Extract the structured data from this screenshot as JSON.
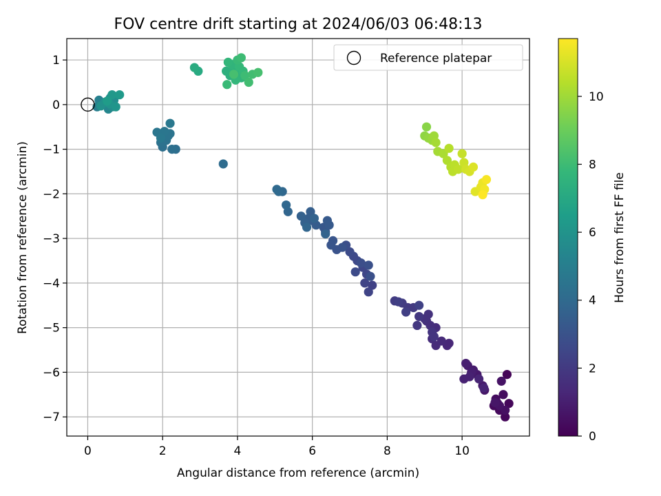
{
  "chart_data": {
    "type": "scatter",
    "title": "FOV centre drift starting at 2024/06/03 06:48:13",
    "xlabel": "Angular distance from reference (arcmin)",
    "ylabel": "Rotation from reference (arcmin)",
    "xlim": [
      -0.56,
      11.8
    ],
    "ylim": [
      -7.43,
      1.48
    ],
    "xticks": [
      0,
      2,
      4,
      6,
      8,
      10
    ],
    "yticks": [
      1,
      0,
      -1,
      -2,
      -3,
      -4,
      -5,
      -6,
      -7
    ],
    "grid": true,
    "legend": {
      "placement": "top-right",
      "entries": [
        "Reference platepar"
      ]
    },
    "reference_point": {
      "x": 0,
      "y": 0,
      "label": "Reference platepar"
    },
    "colorbar": {
      "label": "Hours from first FF file",
      "range": [
        0,
        11.7
      ],
      "ticks": [
        0,
        2,
        4,
        6,
        8,
        10
      ],
      "colormap": "viridis"
    },
    "colormap_stops": [
      "#440154",
      "#482878",
      "#3e4989",
      "#31688e",
      "#26828e",
      "#1f9e89",
      "#35b779",
      "#6ece58",
      "#b5de2b",
      "#fde725"
    ],
    "point_color_axis": "hours",
    "points": [
      {
        "x": 11.2,
        "y": -6.05,
        "h": 0.1
      },
      {
        "x": 11.25,
        "y": -6.7,
        "h": 0.2
      },
      {
        "x": 11.15,
        "y": -7.0,
        "h": 0.2
      },
      {
        "x": 11.0,
        "y": -6.85,
        "h": 0.3
      },
      {
        "x": 10.85,
        "y": -6.75,
        "h": 0.3
      },
      {
        "x": 10.9,
        "y": -6.6,
        "h": 0.4
      },
      {
        "x": 11.1,
        "y": -6.5,
        "h": 0.4
      },
      {
        "x": 11.15,
        "y": -6.85,
        "h": 0.5
      },
      {
        "x": 10.95,
        "y": -6.7,
        "h": 0.5
      },
      {
        "x": 11.05,
        "y": -6.2,
        "h": 0.6
      },
      {
        "x": 11.0,
        "y": -6.75,
        "h": 0.6
      },
      {
        "x": 10.88,
        "y": -6.68,
        "h": 0.7
      },
      {
        "x": 10.6,
        "y": -6.4,
        "h": 0.7
      },
      {
        "x": 10.55,
        "y": -6.3,
        "h": 0.8
      },
      {
        "x": 10.4,
        "y": -6.05,
        "h": 0.8
      },
      {
        "x": 10.3,
        "y": -5.95,
        "h": 0.9
      },
      {
        "x": 10.15,
        "y": -5.85,
        "h": 0.9
      },
      {
        "x": 10.1,
        "y": -5.8,
        "h": 1.0
      },
      {
        "x": 10.25,
        "y": -6.0,
        "h": 1.0
      },
      {
        "x": 10.05,
        "y": -6.15,
        "h": 1.1
      },
      {
        "x": 10.2,
        "y": -6.1,
        "h": 1.1
      },
      {
        "x": 10.45,
        "y": -6.15,
        "h": 1.2
      },
      {
        "x": 10.58,
        "y": -6.35,
        "h": 1.2
      },
      {
        "x": 9.65,
        "y": -5.35,
        "h": 1.3
      },
      {
        "x": 9.6,
        "y": -5.4,
        "h": 1.3
      },
      {
        "x": 9.45,
        "y": -5.3,
        "h": 1.4
      },
      {
        "x": 9.3,
        "y": -5.4,
        "h": 1.4
      },
      {
        "x": 9.2,
        "y": -5.25,
        "h": 1.5
      },
      {
        "x": 9.3,
        "y": -5.0,
        "h": 1.5
      },
      {
        "x": 9.15,
        "y": -4.95,
        "h": 1.6
      },
      {
        "x": 9.05,
        "y": -4.85,
        "h": 1.6
      },
      {
        "x": 9.1,
        "y": -4.7,
        "h": 1.7
      },
      {
        "x": 9.0,
        "y": -4.8,
        "h": 1.7
      },
      {
        "x": 9.2,
        "y": -5.1,
        "h": 1.8
      },
      {
        "x": 9.25,
        "y": -5.2,
        "h": 1.8
      },
      {
        "x": 8.85,
        "y": -4.75,
        "h": 1.9
      },
      {
        "x": 8.8,
        "y": -4.95,
        "h": 1.9
      },
      {
        "x": 8.7,
        "y": -4.55,
        "h": 2.0
      },
      {
        "x": 8.55,
        "y": -4.55,
        "h": 2.0
      },
      {
        "x": 8.4,
        "y": -4.45,
        "h": 2.1
      },
      {
        "x": 8.2,
        "y": -4.4,
        "h": 2.1
      },
      {
        "x": 8.3,
        "y": -4.42,
        "h": 2.2
      },
      {
        "x": 8.5,
        "y": -4.65,
        "h": 2.2
      },
      {
        "x": 8.85,
        "y": -4.5,
        "h": 2.3
      },
      {
        "x": 7.6,
        "y": -4.05,
        "h": 2.3
      },
      {
        "x": 7.5,
        "y": -4.2,
        "h": 2.4
      },
      {
        "x": 7.4,
        "y": -4.0,
        "h": 2.4
      },
      {
        "x": 7.45,
        "y": -3.8,
        "h": 2.5
      },
      {
        "x": 7.35,
        "y": -3.65,
        "h": 2.5
      },
      {
        "x": 7.2,
        "y": -3.5,
        "h": 2.6
      },
      {
        "x": 7.1,
        "y": -3.4,
        "h": 2.6
      },
      {
        "x": 7.15,
        "y": -3.75,
        "h": 2.7
      },
      {
        "x": 7.0,
        "y": -3.3,
        "h": 2.7
      },
      {
        "x": 6.9,
        "y": -3.15,
        "h": 2.8
      },
      {
        "x": 7.3,
        "y": -3.55,
        "h": 2.8
      },
      {
        "x": 7.5,
        "y": -3.6,
        "h": 2.9
      },
      {
        "x": 7.55,
        "y": -3.85,
        "h": 2.9
      },
      {
        "x": 6.8,
        "y": -3.2,
        "h": 3.0
      },
      {
        "x": 6.65,
        "y": -3.25,
        "h": 3.0
      },
      {
        "x": 6.55,
        "y": -3.05,
        "h": 3.1
      },
      {
        "x": 6.5,
        "y": -3.15,
        "h": 3.1
      },
      {
        "x": 6.35,
        "y": -2.85,
        "h": 3.2
      },
      {
        "x": 6.3,
        "y": -2.75,
        "h": 3.2
      },
      {
        "x": 6.45,
        "y": -2.7,
        "h": 3.3
      },
      {
        "x": 6.4,
        "y": -2.6,
        "h": 3.3
      },
      {
        "x": 6.1,
        "y": -2.7,
        "h": 3.4
      },
      {
        "x": 6.0,
        "y": -2.6,
        "h": 3.4
      },
      {
        "x": 5.9,
        "y": -2.55,
        "h": 3.5
      },
      {
        "x": 5.95,
        "y": -2.4,
        "h": 3.5
      },
      {
        "x": 5.8,
        "y": -2.65,
        "h": 3.6
      },
      {
        "x": 5.7,
        "y": -2.5,
        "h": 3.6
      },
      {
        "x": 6.05,
        "y": -2.55,
        "h": 3.7
      },
      {
        "x": 6.35,
        "y": -2.9,
        "h": 3.7
      },
      {
        "x": 5.85,
        "y": -2.75,
        "h": 3.8
      },
      {
        "x": 5.35,
        "y": -2.4,
        "h": 3.8
      },
      {
        "x": 5.3,
        "y": -2.25,
        "h": 3.9
      },
      {
        "x": 5.2,
        "y": -1.95,
        "h": 3.9
      },
      {
        "x": 5.1,
        "y": -1.95,
        "h": 4.0
      },
      {
        "x": 5.05,
        "y": -1.9,
        "h": 4.0
      },
      {
        "x": 3.62,
        "y": -1.33,
        "h": 4.1
      },
      {
        "x": 2.35,
        "y": -1.0,
        "h": 4.2
      },
      {
        "x": 2.25,
        "y": -1.0,
        "h": 4.3
      },
      {
        "x": 2.0,
        "y": -0.95,
        "h": 4.3
      },
      {
        "x": 2.1,
        "y": -0.8,
        "h": 4.4
      },
      {
        "x": 1.95,
        "y": -0.85,
        "h": 4.4
      },
      {
        "x": 2.2,
        "y": -0.65,
        "h": 4.5
      },
      {
        "x": 2.15,
        "y": -0.7,
        "h": 4.5
      },
      {
        "x": 2.05,
        "y": -0.6,
        "h": 4.6
      },
      {
        "x": 1.85,
        "y": -0.62,
        "h": 4.6
      },
      {
        "x": 2.2,
        "y": -0.42,
        "h": 4.7
      },
      {
        "x": 1.95,
        "y": -0.75,
        "h": 4.7
      },
      {
        "x": 0.25,
        "y": -0.05,
        "h": 5.0
      },
      {
        "x": 0.3,
        "y": 0.1,
        "h": 5.1
      },
      {
        "x": 0.4,
        "y": 0.0,
        "h": 5.2
      },
      {
        "x": 0.5,
        "y": 0.05,
        "h": 5.3
      },
      {
        "x": 0.55,
        "y": -0.1,
        "h": 5.4
      },
      {
        "x": 0.6,
        "y": 0.15,
        "h": 5.5
      },
      {
        "x": 0.65,
        "y": -0.05,
        "h": 5.6
      },
      {
        "x": 0.7,
        "y": 0.1,
        "h": 5.7
      },
      {
        "x": 0.45,
        "y": 0.05,
        "h": 5.8
      },
      {
        "x": 0.35,
        "y": -0.03,
        "h": 5.9
      },
      {
        "x": 0.58,
        "y": 0.02,
        "h": 6.0
      },
      {
        "x": 0.75,
        "y": -0.05,
        "h": 6.1
      },
      {
        "x": 0.65,
        "y": 0.22,
        "h": 6.2
      },
      {
        "x": 0.85,
        "y": 0.22,
        "h": 6.3
      },
      {
        "x": 0.52,
        "y": 0.08,
        "h": 6.4
      },
      {
        "x": 2.95,
        "y": 0.75,
        "h": 7.1
      },
      {
        "x": 2.85,
        "y": 0.83,
        "h": 7.2
      },
      {
        "x": 3.7,
        "y": 0.75,
        "h": 7.4
      },
      {
        "x": 3.8,
        "y": 0.65,
        "h": 7.4
      },
      {
        "x": 3.9,
        "y": 0.8,
        "h": 7.5
      },
      {
        "x": 4.0,
        "y": 0.7,
        "h": 7.5
      },
      {
        "x": 4.1,
        "y": 0.6,
        "h": 7.6
      },
      {
        "x": 3.85,
        "y": 0.9,
        "h": 7.6
      },
      {
        "x": 3.75,
        "y": 0.95,
        "h": 7.7
      },
      {
        "x": 3.95,
        "y": 0.55,
        "h": 7.7
      },
      {
        "x": 4.05,
        "y": 0.85,
        "h": 7.8
      },
      {
        "x": 4.15,
        "y": 0.75,
        "h": 7.8
      },
      {
        "x": 3.72,
        "y": 0.45,
        "h": 7.9
      },
      {
        "x": 4.0,
        "y": 1.0,
        "h": 7.9
      },
      {
        "x": 4.1,
        "y": 1.05,
        "h": 8.0
      },
      {
        "x": 4.2,
        "y": 0.65,
        "h": 8.0
      },
      {
        "x": 4.3,
        "y": 0.5,
        "h": 8.1
      },
      {
        "x": 4.4,
        "y": 0.68,
        "h": 8.1
      },
      {
        "x": 4.55,
        "y": 0.72,
        "h": 8.2
      },
      {
        "x": 3.9,
        "y": 0.68,
        "h": 8.2
      },
      {
        "x": 9.05,
        "y": -0.5,
        "h": 9.6
      },
      {
        "x": 9.0,
        "y": -0.7,
        "h": 9.7
      },
      {
        "x": 9.1,
        "y": -0.75,
        "h": 9.8
      },
      {
        "x": 9.2,
        "y": -0.8,
        "h": 9.9
      },
      {
        "x": 9.25,
        "y": -0.7,
        "h": 10.0
      },
      {
        "x": 9.3,
        "y": -0.85,
        "h": 10.1
      },
      {
        "x": 9.35,
        "y": -1.05,
        "h": 10.1
      },
      {
        "x": 9.5,
        "y": -1.1,
        "h": 10.2
      },
      {
        "x": 9.6,
        "y": -1.25,
        "h": 10.3
      },
      {
        "x": 9.7,
        "y": -1.4,
        "h": 10.4
      },
      {
        "x": 9.65,
        "y": -0.98,
        "h": 10.4
      },
      {
        "x": 9.8,
        "y": -1.35,
        "h": 10.5
      },
      {
        "x": 9.75,
        "y": -1.5,
        "h": 10.5
      },
      {
        "x": 9.9,
        "y": -1.45,
        "h": 10.6
      },
      {
        "x": 10.0,
        "y": -1.1,
        "h": 10.7
      },
      {
        "x": 10.05,
        "y": -1.3,
        "h": 10.8
      },
      {
        "x": 10.1,
        "y": -1.45,
        "h": 10.9
      },
      {
        "x": 10.2,
        "y": -1.5,
        "h": 11.0
      },
      {
        "x": 10.3,
        "y": -1.4,
        "h": 11.1
      },
      {
        "x": 10.35,
        "y": -1.95,
        "h": 11.2
      },
      {
        "x": 10.5,
        "y": -1.85,
        "h": 11.3
      },
      {
        "x": 10.55,
        "y": -1.75,
        "h": 11.4
      },
      {
        "x": 10.6,
        "y": -1.9,
        "h": 11.5
      },
      {
        "x": 10.65,
        "y": -1.68,
        "h": 11.6
      },
      {
        "x": 10.55,
        "y": -2.02,
        "h": 11.7
      }
    ]
  }
}
